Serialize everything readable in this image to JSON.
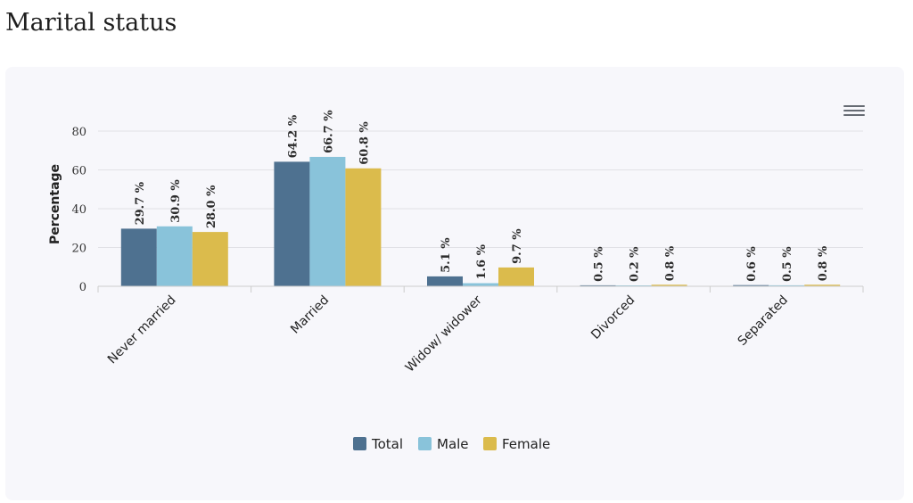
{
  "page": {
    "title": "Marital status"
  },
  "colors": {
    "total": "#4e7190",
    "male": "#89c3da",
    "female": "#dbbb4c"
  },
  "chart_data": {
    "type": "bar",
    "title": "",
    "xlabel": "",
    "ylabel": "Percentage",
    "ylim": [
      0,
      80
    ],
    "yticks": [
      "0",
      "20",
      "40",
      "60",
      "80"
    ],
    "categories": [
      "Never married",
      "Married",
      "Widow/ widower",
      "Divorced",
      "Separated"
    ],
    "series": [
      {
        "name": "Total",
        "values": [
          29.7,
          64.2,
          5.1,
          0.5,
          0.6
        ],
        "labels": [
          "29.7 %",
          "64.2 %",
          "5.1 %",
          "0.5 %",
          "0.6 %"
        ]
      },
      {
        "name": "Male",
        "values": [
          30.9,
          66.7,
          1.6,
          0.2,
          0.5
        ],
        "labels": [
          "30.9 %",
          "66.7 %",
          "1.6 %",
          "0.2 %",
          "0.5 %"
        ]
      },
      {
        "name": "Female",
        "values": [
          28.0,
          60.8,
          9.7,
          0.8,
          0.8
        ],
        "labels": [
          "28.0 %",
          "60.8 %",
          "9.7 %",
          "0.8 %",
          "0.8 %"
        ]
      }
    ],
    "grid": true,
    "legend_position": "bottom-center"
  }
}
